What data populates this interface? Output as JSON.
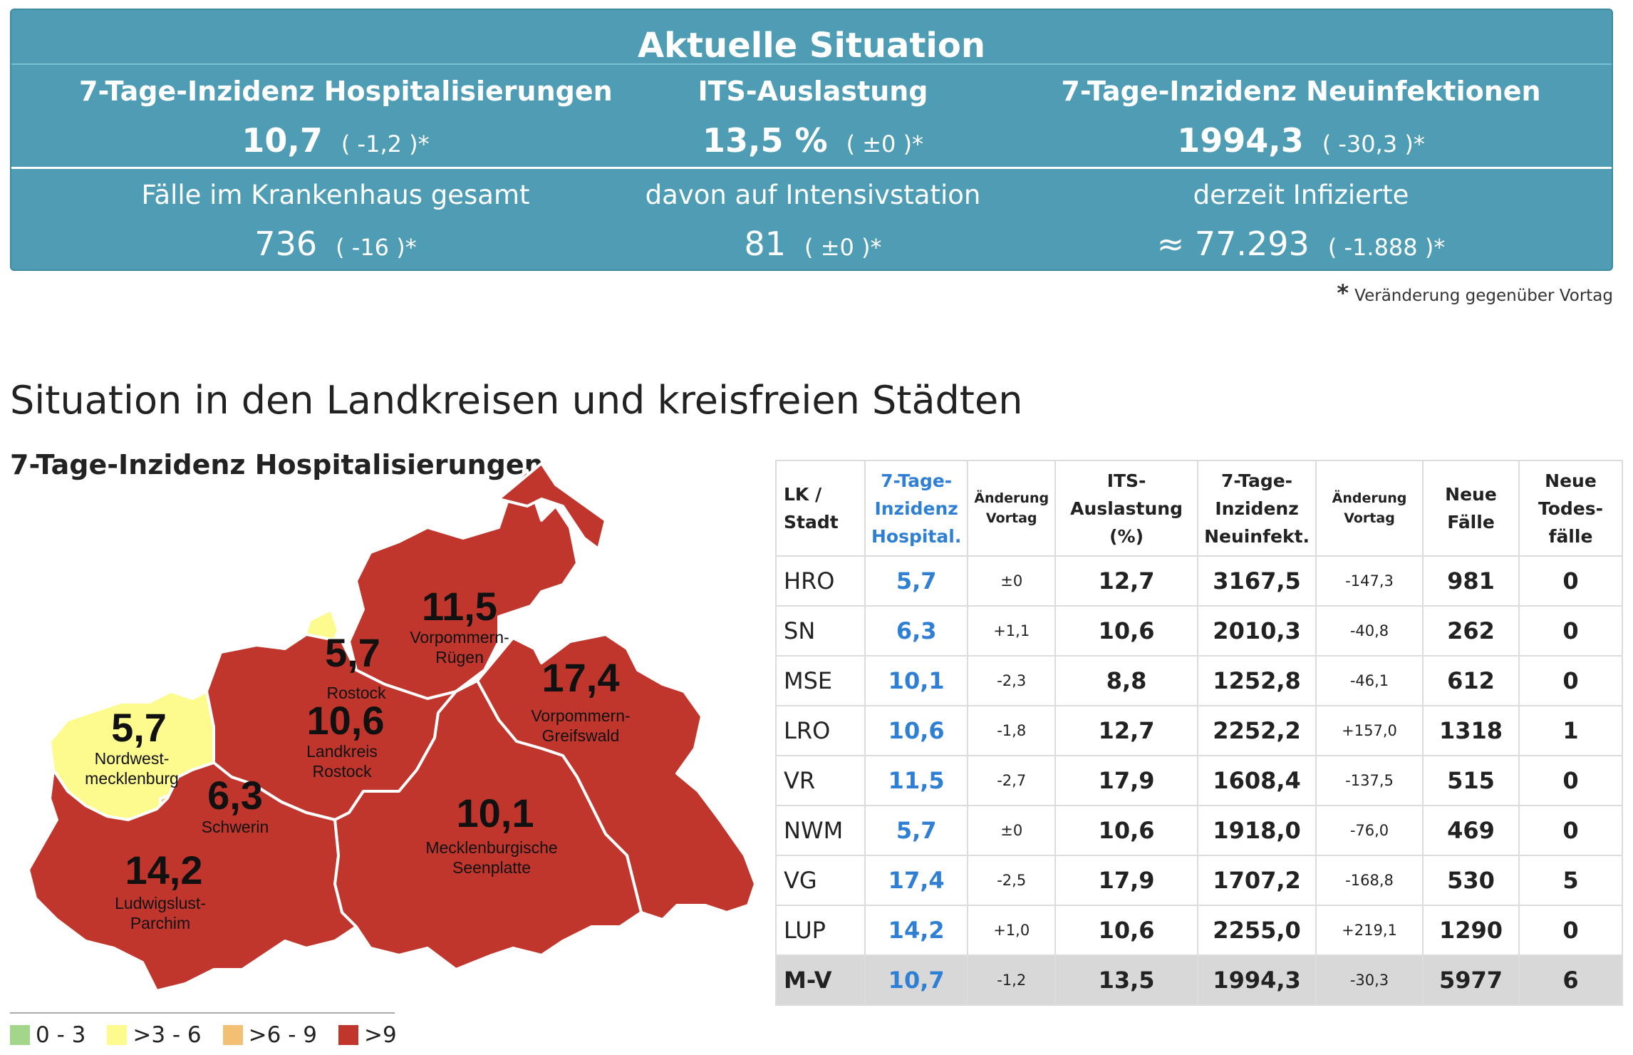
{
  "panel": {
    "title": "Aktuelle Situation",
    "top_row": [
      {
        "heading": "7-Tage-Inzidenz Hospitalisierungen",
        "value": "10,7",
        "delta": "( -1,2 )*"
      },
      {
        "heading": "ITS-Auslastung",
        "value": "13,5 %",
        "delta": "( ±0 )*"
      },
      {
        "heading": "7-Tage-Inzidenz Neuinfektionen",
        "value": "1994,3",
        "delta": "( -30,3 )*"
      }
    ],
    "bottom_row": [
      {
        "heading": "Fälle im Krankenhaus gesamt",
        "value": "736",
        "delta": "( -16 )*"
      },
      {
        "heading": "davon auf Intensivstation",
        "value": "81",
        "delta": "( ±0 )*"
      },
      {
        "heading": "derzeit Infizierte",
        "value": "≈ 77.293",
        "delta": "( -1.888 )*"
      }
    ],
    "note_star": "*",
    "note": "Veränderung gegenüber Vortag",
    "color": "#4f9db5"
  },
  "section_title": "Situation in den Landkreisen und kreisfreien Städten",
  "map": {
    "title": "7-Tage-Inzidenz Hospitalisierungen",
    "regions": [
      {
        "key": "VR",
        "value": "11,5",
        "name_lines": [
          "Vorpommern-",
          "Rügen"
        ],
        "color": "#c0362c"
      },
      {
        "key": "HRO",
        "value": "5,7",
        "name_lines": [
          "Rostock"
        ],
        "color": "#fdfb8e"
      },
      {
        "key": "VG",
        "value": "17,4",
        "name_lines": [
          "Vorpommern-",
          "Greifswald"
        ],
        "color": "#c0362c"
      },
      {
        "key": "NWM",
        "value": "5,7",
        "name_lines": [
          "Nordwest-",
          "mecklenburg"
        ],
        "color": "#fdfb8e"
      },
      {
        "key": "LRO",
        "value": "10,6",
        "name_lines": [
          "Landkreis",
          "Rostock"
        ],
        "color": "#c0362c"
      },
      {
        "key": "SN",
        "value": "6,3",
        "name_lines": [
          "Schwerin"
        ],
        "color": "#f2c073"
      },
      {
        "key": "MSE",
        "value": "10,1",
        "name_lines": [
          "Mecklenburgische",
          "Seenplatte"
        ],
        "color": "#c0362c"
      },
      {
        "key": "LUP",
        "value": "14,2",
        "name_lines": [
          "Ludwigslust-",
          "Parchim"
        ],
        "color": "#c0362c"
      }
    ],
    "legend": [
      {
        "label": "0 - 3",
        "color": "#a3d58a"
      },
      {
        "label": ">3 - 6",
        "color": "#fdfb8e"
      },
      {
        "label": ">6 - 9",
        "color": "#f2c073"
      },
      {
        "label": ">9",
        "color": "#c0362c"
      }
    ]
  },
  "table": {
    "headers": {
      "lk": [
        "LK /",
        "Stadt"
      ],
      "hosp": [
        "7-Tage-",
        "Inzidenz",
        "Hospital."
      ],
      "hosp_chg": [
        "Änderung",
        "Vortag"
      ],
      "its": [
        "ITS-",
        "Auslastung",
        "(%)"
      ],
      "inf": [
        "7-Tage-",
        "Inzidenz",
        "Neuinfekt."
      ],
      "inf_chg": [
        "Änderung",
        "Vortag"
      ],
      "new": [
        "Neue",
        "Fälle"
      ],
      "deaths": [
        "Neue",
        "Todes-",
        "fälle"
      ]
    },
    "rows": [
      {
        "lk": "HRO",
        "hosp": "5,7",
        "hosp_chg": "±0",
        "its": "12,7",
        "inf": "3167,5",
        "inf_chg": "-147,3",
        "new": "981",
        "deaths": "0"
      },
      {
        "lk": "SN",
        "hosp": "6,3",
        "hosp_chg": "+1,1",
        "its": "10,6",
        "inf": "2010,3",
        "inf_chg": "-40,8",
        "new": "262",
        "deaths": "0"
      },
      {
        "lk": "MSE",
        "hosp": "10,1",
        "hosp_chg": "-2,3",
        "its": "8,8",
        "inf": "1252,8",
        "inf_chg": "-46,1",
        "new": "612",
        "deaths": "0"
      },
      {
        "lk": "LRO",
        "hosp": "10,6",
        "hosp_chg": "-1,8",
        "its": "12,7",
        "inf": "2252,2",
        "inf_chg": "+157,0",
        "new": "1318",
        "deaths": "1"
      },
      {
        "lk": "VR",
        "hosp": "11,5",
        "hosp_chg": "-2,7",
        "its": "17,9",
        "inf": "1608,4",
        "inf_chg": "-137,5",
        "new": "515",
        "deaths": "0"
      },
      {
        "lk": "NWM",
        "hosp": "5,7",
        "hosp_chg": "±0",
        "its": "10,6",
        "inf": "1918,0",
        "inf_chg": "-76,0",
        "new": "469",
        "deaths": "0"
      },
      {
        "lk": "VG",
        "hosp": "17,4",
        "hosp_chg": "-2,5",
        "its": "17,9",
        "inf": "1707,2",
        "inf_chg": "-168,8",
        "new": "530",
        "deaths": "5"
      },
      {
        "lk": "LUP",
        "hosp": "14,2",
        "hosp_chg": "+1,0",
        "its": "10,6",
        "inf": "2255,0",
        "inf_chg": "+219,1",
        "new": "1290",
        "deaths": "0"
      }
    ],
    "total": {
      "lk": "M-V",
      "hosp": "10,7",
      "hosp_chg": "-1,2",
      "its": "13,5",
      "inf": "1994,3",
      "inf_chg": "-30,3",
      "new": "5977",
      "deaths": "6"
    },
    "accent": "#2f7fd4"
  }
}
